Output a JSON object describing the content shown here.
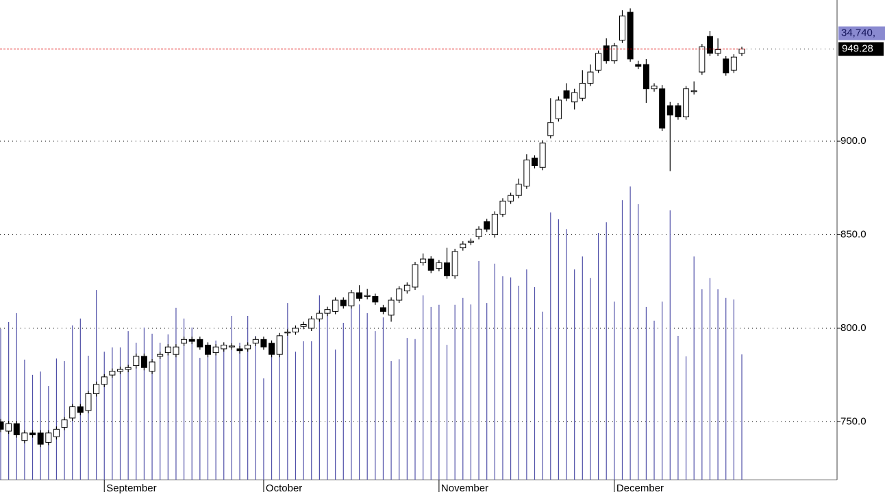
{
  "chart_data": {
    "type": "candlestick",
    "open": [
      750,
      745,
      749,
      740,
      744,
      744,
      739,
      742,
      747,
      752,
      758,
      756,
      765,
      770,
      775,
      777,
      778,
      780,
      785,
      777,
      785,
      787,
      786,
      792,
      794,
      794,
      791,
      787,
      789,
      790,
      789,
      789,
      792,
      794,
      792,
      786,
      797.5,
      798,
      801,
      800,
      805,
      808,
      809,
      815,
      812,
      819,
      817,
      817,
      811,
      807,
      815,
      820,
      822,
      835,
      837,
      832,
      835,
      828,
      843,
      846,
      849,
      857,
      850,
      861,
      868,
      871,
      876,
      891,
      886,
      903,
      912,
      927,
      921,
      923,
      931,
      938,
      951,
      943,
      954,
      969,
      941,
      941,
      928,
      928,
      919,
      919,
      913,
      926.5,
      937,
      956,
      947,
      944,
      938,
      947
    ],
    "high": [
      751.5,
      750.5,
      750.5,
      745.5,
      745.5,
      745.5,
      745.5,
      747.5,
      752.5,
      759.5,
      759.5,
      766.5,
      771.5,
      775.5,
      778.5,
      779.5,
      780.5,
      786.5,
      786.5,
      783.5,
      787.5,
      791.5,
      791.5,
      795.5,
      795.5,
      795.5,
      792.5,
      791.5,
      792.5,
      792,
      790.5,
      792.5,
      795.5,
      795.5,
      793.5,
      797.5,
      799.5,
      801.5,
      803.5,
      806.5,
      809.5,
      811.5,
      816.5,
      816.5,
      820.5,
      823,
      821,
      818.5,
      812.5,
      816.5,
      822.5,
      824.5,
      835.5,
      840,
      838.5,
      836.5,
      843,
      842.5,
      846.5,
      848,
      854.5,
      858.5,
      862.5,
      869.5,
      872.5,
      880,
      893,
      892.5,
      900.5,
      923,
      924,
      931,
      928,
      938,
      941,
      948.5,
      955,
      952.5,
      970,
      971,
      943,
      944,
      931,
      930,
      921,
      920.5,
      929.5,
      932,
      952,
      959,
      955,
      945.5,
      946.5,
      950.5
    ],
    "low": [
      744.5,
      743.5,
      741.5,
      738.5,
      741.5,
      736.5,
      737.5,
      740.5,
      745.5,
      750.5,
      753.5,
      754.5,
      763.5,
      768.5,
      773.5,
      775.5,
      776.5,
      778.5,
      777.5,
      775.5,
      783.5,
      785.5,
      784.5,
      790.5,
      791.5,
      788.5,
      784.5,
      785.5,
      787.5,
      788.5,
      786.5,
      787.5,
      790.5,
      788.5,
      784.5,
      784.5,
      796,
      796.5,
      799.5,
      798.5,
      803.5,
      806.5,
      807.5,
      810.5,
      810.5,
      814.5,
      815.5,
      812.5,
      807.5,
      803.5,
      813.5,
      818.5,
      820.5,
      833.5,
      829.5,
      830.5,
      826.5,
      826.5,
      841.5,
      844.5,
      847.5,
      851.5,
      848.5,
      859.5,
      866.5,
      869.5,
      874.5,
      885.5,
      884.5,
      901.5,
      910.5,
      921.5,
      917,
      921.5,
      929.5,
      936.5,
      941.5,
      941.5,
      952.5,
      942.5,
      938.5,
      920.5,
      926.5,
      905.5,
      884,
      911.5,
      911.5,
      925,
      935.5,
      945.5,
      945.5,
      935,
      936.5,
      945.5
    ],
    "close": [
      746,
      749,
      743,
      744,
      743,
      738,
      744,
      746,
      751,
      758,
      755,
      765,
      770,
      774,
      777,
      778,
      779,
      785,
      779,
      782,
      786,
      790,
      790,
      794,
      793,
      790,
      786,
      790,
      791,
      790.5,
      788,
      791,
      794,
      790,
      786,
      796,
      798,
      800,
      802,
      805,
      808,
      810,
      815,
      812,
      819,
      816,
      817.5,
      814,
      809,
      815,
      821,
      823,
      834,
      837,
      831,
      835,
      828,
      841,
      845,
      846.5,
      853,
      853,
      861,
      868,
      871,
      877,
      890,
      887,
      899,
      910,
      922,
      923,
      926,
      931,
      937,
      947,
      943,
      951,
      967,
      944,
      940,
      928,
      929.5,
      907,
      914,
      913,
      928,
      927,
      950.5,
      947,
      949,
      936.5,
      945,
      949.28
    ],
    "volume": [
      41.8,
      43.7,
      46.2,
      33.3,
      29.1,
      30.0,
      26.0,
      33.6,
      32.9,
      42.8,
      44.7,
      34.4,
      52.6,
      35.5,
      36.7,
      36.7,
      41.2,
      38.0,
      42.2,
      40.5,
      38.0,
      40.3,
      47.7,
      44.7,
      42.2,
      33.8,
      38.0,
      38.6,
      36.1,
      45.4,
      38.0,
      45.4,
      39.9,
      28.1,
      37.6,
      40.1,
      49.0,
      35.5,
      38.4,
      38.4,
      51.1,
      46.2,
      36.1,
      43.5,
      50.0,
      48.6,
      46.2,
      41.2,
      45.0,
      32.9,
      33.4,
      39.3,
      39.0,
      51.1,
      47.9,
      48.5,
      37.4,
      48.5,
      50.4,
      48.6,
      60.6,
      49.0,
      59.9,
      56.4,
      56.1,
      53.8,
      58.3,
      53.4,
      46.6,
      74.1,
      72.2,
      69.5,
      58.3,
      61.9,
      55.9,
      68.4,
      71.4,
      49.4,
      77.5,
      81.3,
      76.4,
      47.9,
      44.1,
      49.4,
      74.7,
      39.9,
      34.2,
      61.9,
      52.8,
      55.9,
      52.8,
      50.4,
      50.0,
      34.74
    ],
    "volume_label": "34,740,",
    "volume_color": "#5050a8",
    "ylim": [
      719,
      975.5
    ],
    "yticks": [
      {
        "value": 750,
        "label": "750.0"
      },
      {
        "value": 800,
        "label": "800.0"
      },
      {
        "value": 850,
        "label": "850.0"
      },
      {
        "value": 900,
        "label": "900.0"
      }
    ],
    "volume_ylim": [
      0,
      133
    ],
    "xticks": [
      {
        "value": 13,
        "label": "September"
      },
      {
        "value": 33,
        "label": "October"
      },
      {
        "value": 55,
        "label": "November"
      },
      {
        "value": 77,
        "label": "December"
      }
    ],
    "grid": true
  }
}
